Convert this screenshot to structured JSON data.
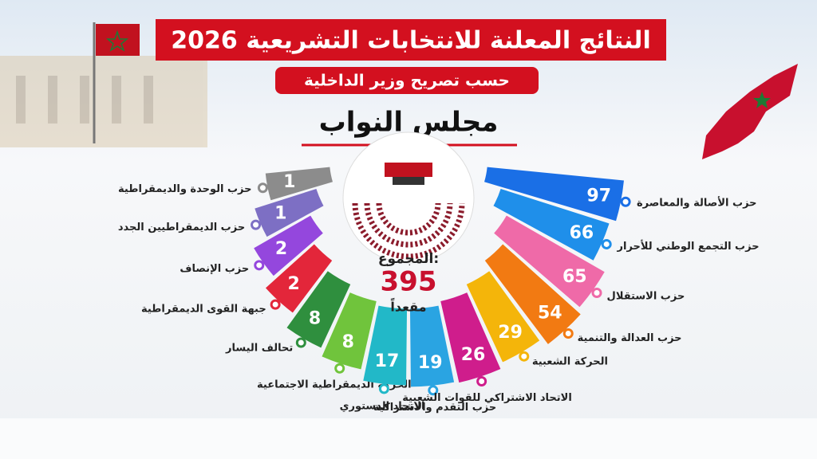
{
  "chart_data": {
    "type": "radial-bar",
    "title": "النتائج المعلنة للانتخابات التشريعية 2026",
    "subtitle": "حسب تصريح وزير الداخلية",
    "heading": "مجلس النواب",
    "total_label": "المجموع:",
    "total": 395,
    "total_unit": "مقعداً",
    "categories": [
      "حزب الوحدة والديمقراطية",
      "حزب الديمقراطيين الجدد",
      "حزب الإنصاف",
      "جبهة القوى الديمقراطية",
      "تحالف اليسار",
      "الحركة الديمقراطية الاجتماعية",
      "الاتحاد الدستوري",
      "حزب التقدم والاشتراكية",
      "الاتحاد الاشتراكي للقوات الشعبية",
      "الحركة الشعبية",
      "حزب العدالة والتنمية",
      "حزب الاستقلال",
      "حزب التجمع الوطني للأحرار",
      "حزب الأصالة والمعاصرة"
    ],
    "values": [
      1,
      1,
      2,
      2,
      8,
      8,
      17,
      19,
      26,
      29,
      54,
      65,
      66,
      97
    ],
    "colors": [
      "#8c8c8c",
      "#7d6fc4",
      "#9447dd",
      "#e3263a",
      "#2f8f3e",
      "#70c43c",
      "#22b8c8",
      "#2aa4e2",
      "#cf1d8c",
      "#f4b50a",
      "#f27a12",
      "#ef6aa8",
      "#1f8fea",
      "#1a6fe6"
    ]
  }
}
